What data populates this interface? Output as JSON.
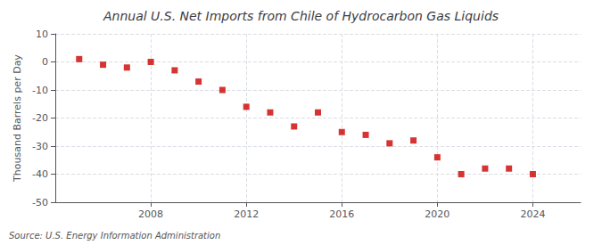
{
  "chart_data": {
    "type": "scatter",
    "title": "Annual U.S. Net Imports from Chile of Hydrocarbon Gas Liquids",
    "ylabel": "Thousand Barrels per Day",
    "annotation": "Source: U.S. Energy Information Administration",
    "x": [
      2005,
      2006,
      2007,
      2008,
      2009,
      2010,
      2011,
      2012,
      2013,
      2014,
      2015,
      2016,
      2017,
      2018,
      2019,
      2020,
      2021,
      2022,
      2023,
      2024
    ],
    "values": [
      1,
      -1,
      -2,
      0,
      -3,
      -7,
      -10,
      -16,
      -18,
      -23,
      -18,
      -25,
      -26,
      -29,
      -28,
      -34,
      -40,
      -38,
      -38,
      -40
    ],
    "color": "#cc0000",
    "marker": "square",
    "xlim": [
      2004,
      2026
    ],
    "xticks": [
      2008,
      2012,
      2016,
      2020,
      2024
    ],
    "ylim": [
      -50,
      10
    ],
    "yticks": [
      -50,
      -40,
      -30,
      -20,
      -10,
      0,
      10
    ],
    "grid": true
  }
}
